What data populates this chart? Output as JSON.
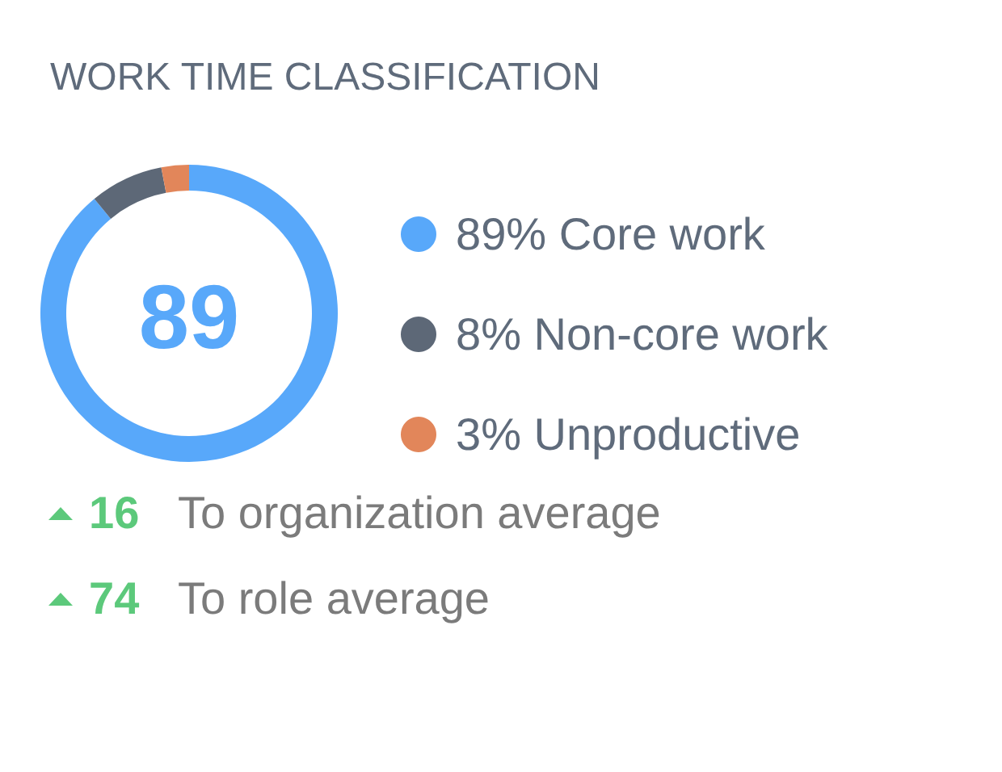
{
  "chart_data": {
    "type": "donut",
    "title": "WORK TIME CLASSIFICATION",
    "categories": [
      "Core work",
      "Non-core work",
      "Unproductive"
    ],
    "values": [
      89,
      8,
      3
    ],
    "value_labels": [
      "89%",
      "8%",
      "3%"
    ],
    "colors": [
      "#58a8fa",
      "#5d6877",
      "#e2865a"
    ],
    "legend": "right",
    "annotations": [
      "89",
      "16 To organization average",
      "74 To role average"
    ]
  }
}
